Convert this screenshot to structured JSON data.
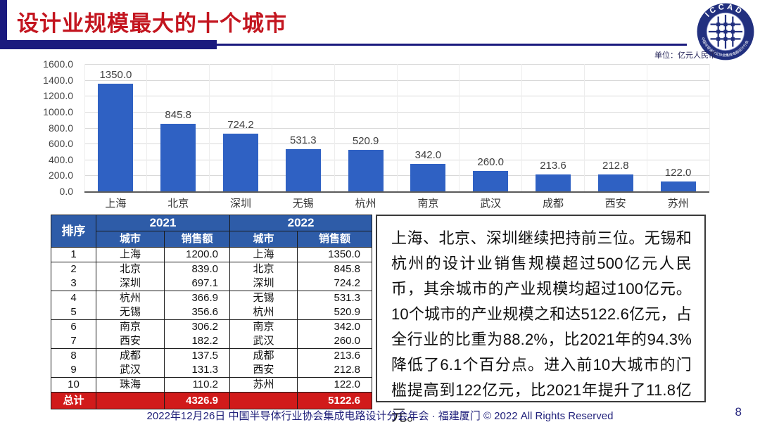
{
  "title": "设计业规模最大的十个城市",
  "unit_label": "单位：亿元人民币",
  "logo": {
    "acronym": "ICCAD",
    "ring_text": "中国半导体行业协会集成电路设计分会"
  },
  "chart_data": {
    "type": "bar",
    "categories": [
      "上海",
      "北京",
      "深圳",
      "无锡",
      "杭州",
      "南京",
      "武汉",
      "成都",
      "西安",
      "苏州"
    ],
    "values": [
      1350.0,
      845.8,
      724.2,
      531.3,
      520.9,
      342.0,
      260.0,
      213.6,
      212.8,
      122.0
    ],
    "title": "",
    "xlabel": "",
    "ylabel": "",
    "ylim": [
      0,
      1600
    ],
    "ytick_step": 200,
    "yticks": [
      "1600.0",
      "1400.0",
      "1200.0",
      "1000.0",
      "800.0",
      "600.0",
      "400.0",
      "200.0",
      "0.0"
    ],
    "bar_color": "#2f61c3",
    "grid": true,
    "legend": false
  },
  "table": {
    "col_headers": {
      "rank": "排序",
      "year1": "2021",
      "year2": "2022",
      "city": "城市",
      "sales": "销售额"
    },
    "rows": [
      {
        "rank": "1",
        "city2021": "上海",
        "sales2021": "1200.0",
        "city2022": "上海",
        "sales2022": "1350.0"
      },
      {
        "rank": "2",
        "city2021": "北京",
        "sales2021": "839.0",
        "city2022": "北京",
        "sales2022": "845.8"
      },
      {
        "rank": "3",
        "city2021": "深圳",
        "sales2021": "697.1",
        "city2022": "深圳",
        "sales2022": "724.2"
      },
      {
        "rank": "4",
        "city2021": "杭州",
        "sales2021": "366.9",
        "city2022": "无锡",
        "sales2022": "531.3"
      },
      {
        "rank": "5",
        "city2021": "无锡",
        "sales2021": "356.6",
        "city2022": "杭州",
        "sales2022": "520.9"
      },
      {
        "rank": "6",
        "city2021": "南京",
        "sales2021": "306.2",
        "city2022": "南京",
        "sales2022": "342.0"
      },
      {
        "rank": "7",
        "city2021": "西安",
        "sales2021": "182.2",
        "city2022": "武汉",
        "sales2022": "260.0"
      },
      {
        "rank": "8",
        "city2021": "成都",
        "sales2021": "137.5",
        "city2022": "成都",
        "sales2022": "213.6"
      },
      {
        "rank": "9",
        "city2021": "武汉",
        "sales2021": "131.3",
        "city2022": "西安",
        "sales2022": "212.8"
      },
      {
        "rank": "10",
        "city2021": "珠海",
        "sales2021": "110.2",
        "city2022": "苏州",
        "sales2022": "122.0"
      }
    ],
    "total": {
      "label": "总计",
      "sales2021": "4326.9",
      "sales2022": "5122.6"
    }
  },
  "summary_text": "上海、北京、深圳继续把持前三位。无锡和杭州的设计业销售规模超过500亿元人民币，其余城市的产业规模均超过100亿元。10个城市的产业规模之和达5122.6亿元，占全行业的比重为88.2%，比2021年的94.3%降低了6.1个百分点。进入前10大城市的门槛提高到122亿元，比2021年提升了11.8亿元。",
  "footer": {
    "text": "2022年12月26日 中国半导体行业协会集成电路设计分会年会 · 福建厦门 © 2022 All Rights Reserved",
    "page_number": "8"
  },
  "colors": {
    "accent_navy": "#1a1a7e",
    "title_red": "#c3151f",
    "bar_blue": "#2f61c3",
    "table_header_blue": "#2e5ca8",
    "total_row_red": "#d11a1a"
  }
}
